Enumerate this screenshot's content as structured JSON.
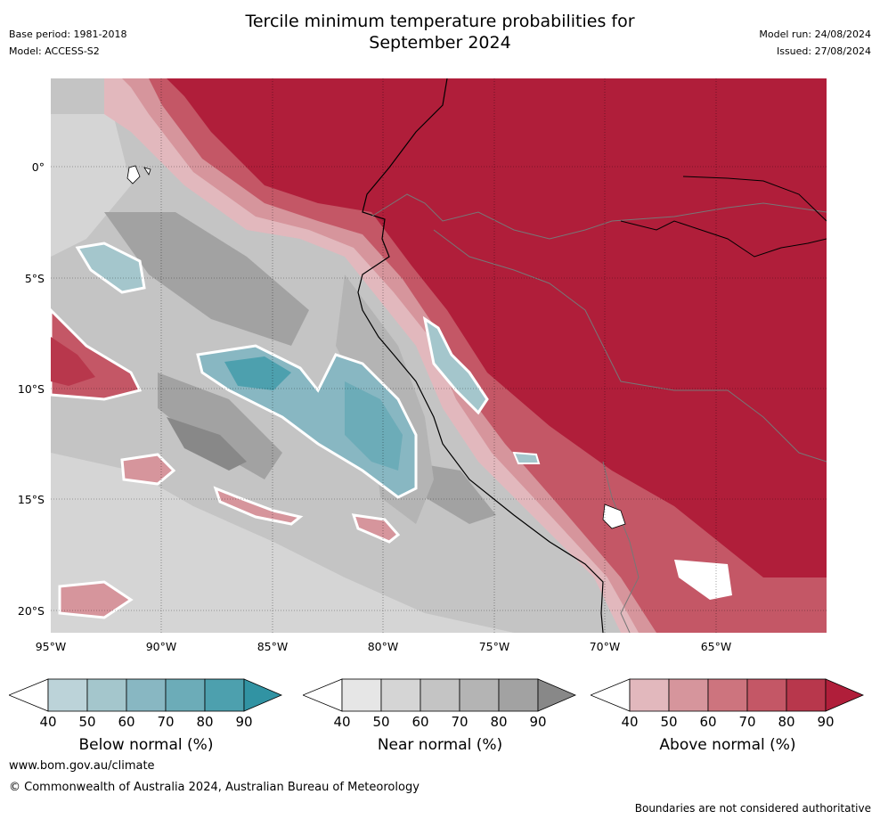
{
  "title_line1": "Tercile minimum temperature probabilities for",
  "title_line2": "September 2024",
  "base_period": "Base period: 1981-2018",
  "model": "Model: ACCESS-S2",
  "model_run": "Model run: 24/08/2024",
  "issued": "Issued: 27/08/2024",
  "lat_labels": [
    "0°",
    "5°S",
    "10°S",
    "15°S",
    "20°S"
  ],
  "lon_labels": [
    "95°W",
    "90°W",
    "85°W",
    "80°W",
    "75°W",
    "70°W",
    "65°W"
  ],
  "colorbars": [
    {
      "title": "Below normal (%)",
      "ticks": [
        "40",
        "50",
        "60",
        "70",
        "80",
        "90"
      ],
      "colors": [
        "#ffffff",
        "#bcd3d9",
        "#a4c6cc",
        "#88b7c2",
        "#6cacb8",
        "#4da0ae",
        "#3193a3"
      ]
    },
    {
      "title": "Near normal (%)",
      "ticks": [
        "40",
        "50",
        "60",
        "70",
        "80",
        "90"
      ],
      "colors": [
        "#ffffff",
        "#e6e6e6",
        "#d5d5d5",
        "#c4c4c4",
        "#b4b4b4",
        "#a2a2a2",
        "#888888"
      ]
    },
    {
      "title": "Above normal (%)",
      "ticks": [
        "40",
        "50",
        "60",
        "70",
        "80",
        "90"
      ],
      "colors": [
        "#ffffff",
        "#e2b8bd",
        "#d6959c",
        "#cd747e",
        "#c45766",
        "#b8374c",
        "#b01e3a"
      ]
    }
  ],
  "footer_url": "www.bom.gov.au/climate",
  "copyright": "© Commonwealth of Australia 2024, Australian Bureau of Meteorology",
  "disclaimer": "Boundaries are not considered authoritative"
}
